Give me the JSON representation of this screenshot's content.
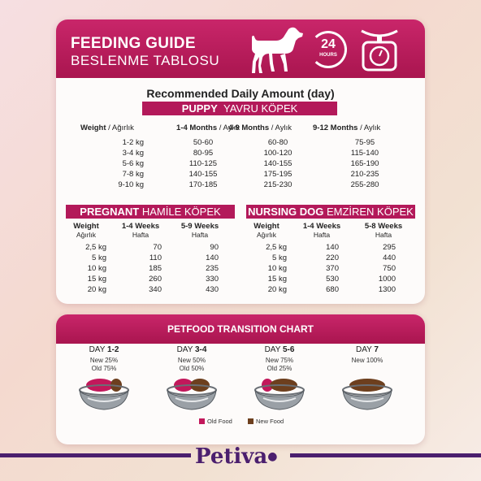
{
  "header": {
    "title_en": "FEEDING GUIDE",
    "title_tr": "BESLENME TABLOSU",
    "clock_text": "24",
    "clock_sub": "HOURS"
  },
  "main": {
    "subtitle": "Recommended Daily Amount (day)"
  },
  "puppy": {
    "label_en": "PUPPY",
    "label_tr": "YAVRU KÖPEK",
    "headers": [
      {
        "en": "Weight",
        "tr": "Ağırlık"
      },
      {
        "en": "1-4 Months",
        "tr": "Aylık"
      },
      {
        "en": "4-9 Months",
        "tr": "Aylık"
      },
      {
        "en": "9-12 Months",
        "tr": "Aylık"
      }
    ],
    "rows": [
      [
        "1-2 kg",
        "50-60",
        "60-80",
        "75-95"
      ],
      [
        "3-4 kg",
        "80-95",
        "100-120",
        "115-140"
      ],
      [
        "5-6 kg",
        "110-125",
        "140-155",
        "165-190"
      ],
      [
        "7-8 kg",
        "140-155",
        "175-195",
        "210-235"
      ],
      [
        "9-10 kg",
        "170-185",
        "215-230",
        "255-280"
      ]
    ]
  },
  "pregnant": {
    "label_en": "PREGNANT",
    "label_tr": "HAMİLE KÖPEK",
    "headers": [
      {
        "en": "Weight",
        "tr": "Ağırlık"
      },
      {
        "en": "1-4 Weeks",
        "tr": "Hafta"
      },
      {
        "en": "5-9 Weeks",
        "tr": "Hafta"
      }
    ],
    "rows": [
      [
        "2,5 kg",
        "70",
        "90"
      ],
      [
        "5 kg",
        "110",
        "140"
      ],
      [
        "10 kg",
        "185",
        "235"
      ],
      [
        "15 kg",
        "260",
        "330"
      ],
      [
        "20 kg",
        "340",
        "430"
      ]
    ]
  },
  "nursing": {
    "label_en": "NURSING DOG",
    "label_tr": "EMZİREN KÖPEK",
    "headers": [
      {
        "en": "Weight",
        "tr": "Ağırlık"
      },
      {
        "en": "1-4 Weeks",
        "tr": "Hafta"
      },
      {
        "en": "5-8 Weeks",
        "tr": "Hafta"
      }
    ],
    "rows": [
      [
        "2,5 kg",
        "140",
        "295"
      ],
      [
        "5 kg",
        "220",
        "440"
      ],
      [
        "10 kg",
        "370",
        "750"
      ],
      [
        "15 kg",
        "530",
        "1000"
      ],
      [
        "20 kg",
        "680",
        "1300"
      ]
    ]
  },
  "transition": {
    "title": "PETFOOD TRANSITION CHART",
    "days": [
      {
        "prefix": "DAY",
        "num": "1-2",
        "line1": "New 25%",
        "line2": "Old 75%",
        "new_fraction": 0.25
      },
      {
        "prefix": "DAY",
        "num": "3-4",
        "line1": "New 50%",
        "line2": "Old 50%",
        "new_fraction": 0.5
      },
      {
        "prefix": "DAY",
        "num": "5-6",
        "line1": "New 75%",
        "line2": "Old 25%",
        "new_fraction": 0.75
      },
      {
        "prefix": "DAY",
        "num": "7",
        "line1": "New 100%",
        "line2": "",
        "new_fraction": 1.0
      }
    ],
    "legend_old": "Old Food",
    "legend_new": "New Food"
  },
  "brand": {
    "name": "Petiva"
  },
  "colors": {
    "primary": "#b3195a",
    "brand_purple": "#4b1f6e",
    "old_food": "#c2185b",
    "new_food": "#6d3f1e"
  }
}
